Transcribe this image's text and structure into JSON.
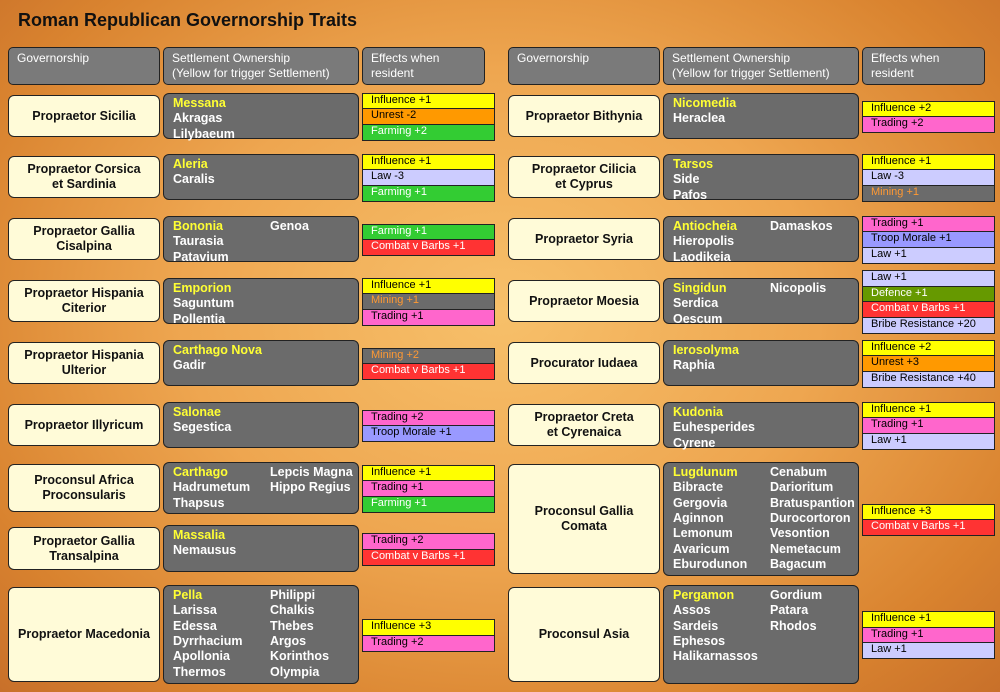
{
  "title": "Roman Republican Governorship Traits",
  "columns": [
    {
      "headers": {
        "governorship": [
          "Governorship"
        ],
        "settlements": [
          "Settlement Ownership",
          "(Yellow for trigger Settlement)"
        ],
        "effects": [
          "Effects when",
          "resident"
        ]
      },
      "rows": [
        {
          "governorship": [
            "Propraetor Sicilia"
          ],
          "settlements": [
            [
              "Messana",
              "Akragas",
              "Lilybaeum"
            ]
          ],
          "effects": [
            {
              "text": "Influence +1",
              "color": "#ffff00"
            },
            {
              "text": "Unrest -2",
              "color": "#ff9900"
            },
            {
              "text": "Farming +2",
              "color": "#33cc33"
            }
          ]
        },
        {
          "governorship": [
            "Propraetor Corsica",
            "et Sardinia"
          ],
          "settlements": [
            [
              "Aleria",
              "Caralis"
            ]
          ],
          "effects": [
            {
              "text": "Influence +1",
              "color": "#ffff00"
            },
            {
              "text": "Law -3",
              "color": "#ccccff"
            },
            {
              "text": "Farming +1",
              "color": "#33cc33"
            }
          ]
        },
        {
          "governorship": [
            "Propraetor Gallia",
            "Cisalpina"
          ],
          "settlements": [
            [
              "Bononia",
              "Taurasia",
              "Patavium"
            ],
            [
              "Genoa"
            ]
          ],
          "effects": [
            {
              "text": "Farming +1",
              "color": "#33cc33"
            },
            {
              "text": "Combat v Barbs +1",
              "color": "#ff3333"
            }
          ]
        },
        {
          "governorship": [
            "Propraetor Hispania",
            "Citerior"
          ],
          "settlements": [
            [
              "Emporion",
              "Saguntum",
              "Pollentia"
            ]
          ],
          "effects": [
            {
              "text": "Influence +1",
              "color": "#ffff00"
            },
            {
              "text": "Mining +1",
              "color": "#6b6b6b"
            },
            {
              "text": "Trading +1",
              "color": "#ff66cc"
            }
          ]
        },
        {
          "governorship": [
            "Propraetor Hispania",
            "Ulterior"
          ],
          "settlements": [
            [
              "Carthago Nova",
              "Gadir"
            ]
          ],
          "effects": [
            {
              "text": "Mining +2",
              "color": "#6b6b6b"
            },
            {
              "text": "Combat v Barbs +1",
              "color": "#ff3333"
            }
          ]
        },
        {
          "governorship": [
            "Propraetor Illyricum"
          ],
          "settlements": [
            [
              "Salonae",
              "Segestica"
            ]
          ],
          "effects": [
            {
              "text": "Trading +2",
              "color": "#ff66cc"
            },
            {
              "text": "Troop Morale +1",
              "color": "#9999ff"
            }
          ]
        },
        {
          "governorship": [
            "Proconsul Africa",
            "Proconsularis"
          ],
          "settlements": [
            [
              "Carthago",
              "Hadrumetum",
              "Thapsus"
            ],
            [
              "Lepcis Magna",
              "Hippo Regius"
            ]
          ],
          "effects": [
            {
              "text": "Influence +1",
              "color": "#ffff00"
            },
            {
              "text": "Trading +1",
              "color": "#ff66cc"
            },
            {
              "text": "Farming +1",
              "color": "#33cc33"
            }
          ]
        },
        {
          "governorship": [
            "Propraetor Gallia",
            "Transalpina"
          ],
          "settlements": [
            [
              "Massalia",
              "Nemausus"
            ]
          ],
          "effects": [
            {
              "text": "Trading +2",
              "color": "#ff66cc"
            },
            {
              "text": "Combat v Barbs +1",
              "color": "#ff3333"
            }
          ]
        },
        {
          "governorship": [
            "Propraetor Macedonia"
          ],
          "settlements": [
            [
              "Pella",
              "Larissa",
              "Edessa",
              "Dyrrhacium",
              "Apollonia",
              "Thermos"
            ],
            [
              "Philippi",
              "Chalkis",
              "Thebes",
              "Argos",
              "Korinthos",
              "Olympia"
            ]
          ],
          "effects": [
            {
              "text": "Influence +3",
              "color": "#ffff00"
            },
            {
              "text": "Trading +2",
              "color": "#ff66cc"
            }
          ]
        }
      ]
    },
    {
      "headers": {
        "governorship": [
          "Governorship"
        ],
        "settlements": [
          "Settlement Ownership",
          "(Yellow for trigger Settlement)"
        ],
        "effects": [
          "Effects when",
          "resident"
        ]
      },
      "rows": [
        {
          "governorship": [
            "Propraetor Bithynia"
          ],
          "settlements": [
            [
              "Nicomedia",
              "Heraclea"
            ]
          ],
          "effects": [
            {
              "text": "Influence +2",
              "color": "#ffff00"
            },
            {
              "text": "Trading +2",
              "color": "#ff66cc"
            }
          ]
        },
        {
          "governorship": [
            "Propraetor Cilicia",
            "et Cyprus"
          ],
          "settlements": [
            [
              "Tarsos",
              "Side",
              "Pafos"
            ]
          ],
          "effects": [
            {
              "text": "Influence +1",
              "color": "#ffff00"
            },
            {
              "text": "Law -3",
              "color": "#ccccff"
            },
            {
              "text": "Mining +1",
              "color": "#6b6b6b"
            }
          ]
        },
        {
          "governorship": [
            "Propraetor Syria"
          ],
          "settlements": [
            [
              "Antiocheia",
              "Hieropolis",
              "Laodikeia"
            ],
            [
              "Damaskos"
            ]
          ],
          "effects": [
            {
              "text": "Trading +1",
              "color": "#ff66cc"
            },
            {
              "text": "Troop Morale +1",
              "color": "#9999ff"
            },
            {
              "text": "Law +1",
              "color": "#ccccff"
            }
          ]
        },
        {
          "governorship": [
            "Propraetor Moesia"
          ],
          "settlements": [
            [
              "Singidun",
              "Serdica",
              "Oescum"
            ],
            [
              "Nicopolis"
            ]
          ],
          "effects": [
            {
              "text": "Law +1",
              "color": "#ccccff"
            },
            {
              "text": "Defence +1",
              "color": "#669900"
            },
            {
              "text": "Combat v Barbs +1",
              "color": "#ff3333"
            },
            {
              "text": "Bribe Resistance +20",
              "color": "#ccccff"
            }
          ]
        },
        {
          "governorship": [
            "Procurator Iudaea"
          ],
          "settlements": [
            [
              "Ierosolyma",
              "Raphia"
            ]
          ],
          "effects": [
            {
              "text": "Influence +2",
              "color": "#ffff00"
            },
            {
              "text": "Unrest +3",
              "color": "#ff9900"
            },
            {
              "text": "Bribe Resistance +40",
              "color": "#ccccff"
            }
          ]
        },
        {
          "governorship": [
            "Propraetor Creta",
            "et Cyrenaica"
          ],
          "settlements": [
            [
              "Kudonia",
              "Euhesperides",
              "Cyrene"
            ]
          ],
          "effects": [
            {
              "text": "Influence +1",
              "color": "#ffff00"
            },
            {
              "text": "Trading +1",
              "color": "#ff66cc"
            },
            {
              "text": "Law +1",
              "color": "#ccccff"
            }
          ]
        },
        {
          "governorship": [
            "Proconsul Gallia",
            "Comata"
          ],
          "settlements": [
            [
              "Lugdunum",
              "Bibracte",
              "Gergovia",
              "Aginnon",
              "Lemonum",
              "Avaricum",
              "Eburodunon"
            ],
            [
              "Cenabum",
              "Darioritum",
              "Bratuspantion",
              "Durocortoron",
              "Vesontion",
              "Nemetacum",
              "Bagacum"
            ]
          ],
          "effects": [
            {
              "text": "Influence +3",
              "color": "#ffff00"
            },
            {
              "text": "Combat v Barbs +1",
              "color": "#ff3333"
            }
          ]
        },
        {
          "governorship": [
            "Proconsul Asia"
          ],
          "settlements": [
            [
              "Pergamon",
              "Assos",
              "Sardeis",
              "Ephesos",
              "Halikarnassos"
            ],
            [
              "Gordium",
              "Patara",
              "Rhodos"
            ]
          ],
          "effects": [
            {
              "text": "Influence +1",
              "color": "#ffff00"
            },
            {
              "text": "Trading +1",
              "color": "#ff66cc"
            },
            {
              "text": "Law +1",
              "color": "#ccccff"
            }
          ]
        }
      ]
    }
  ]
}
